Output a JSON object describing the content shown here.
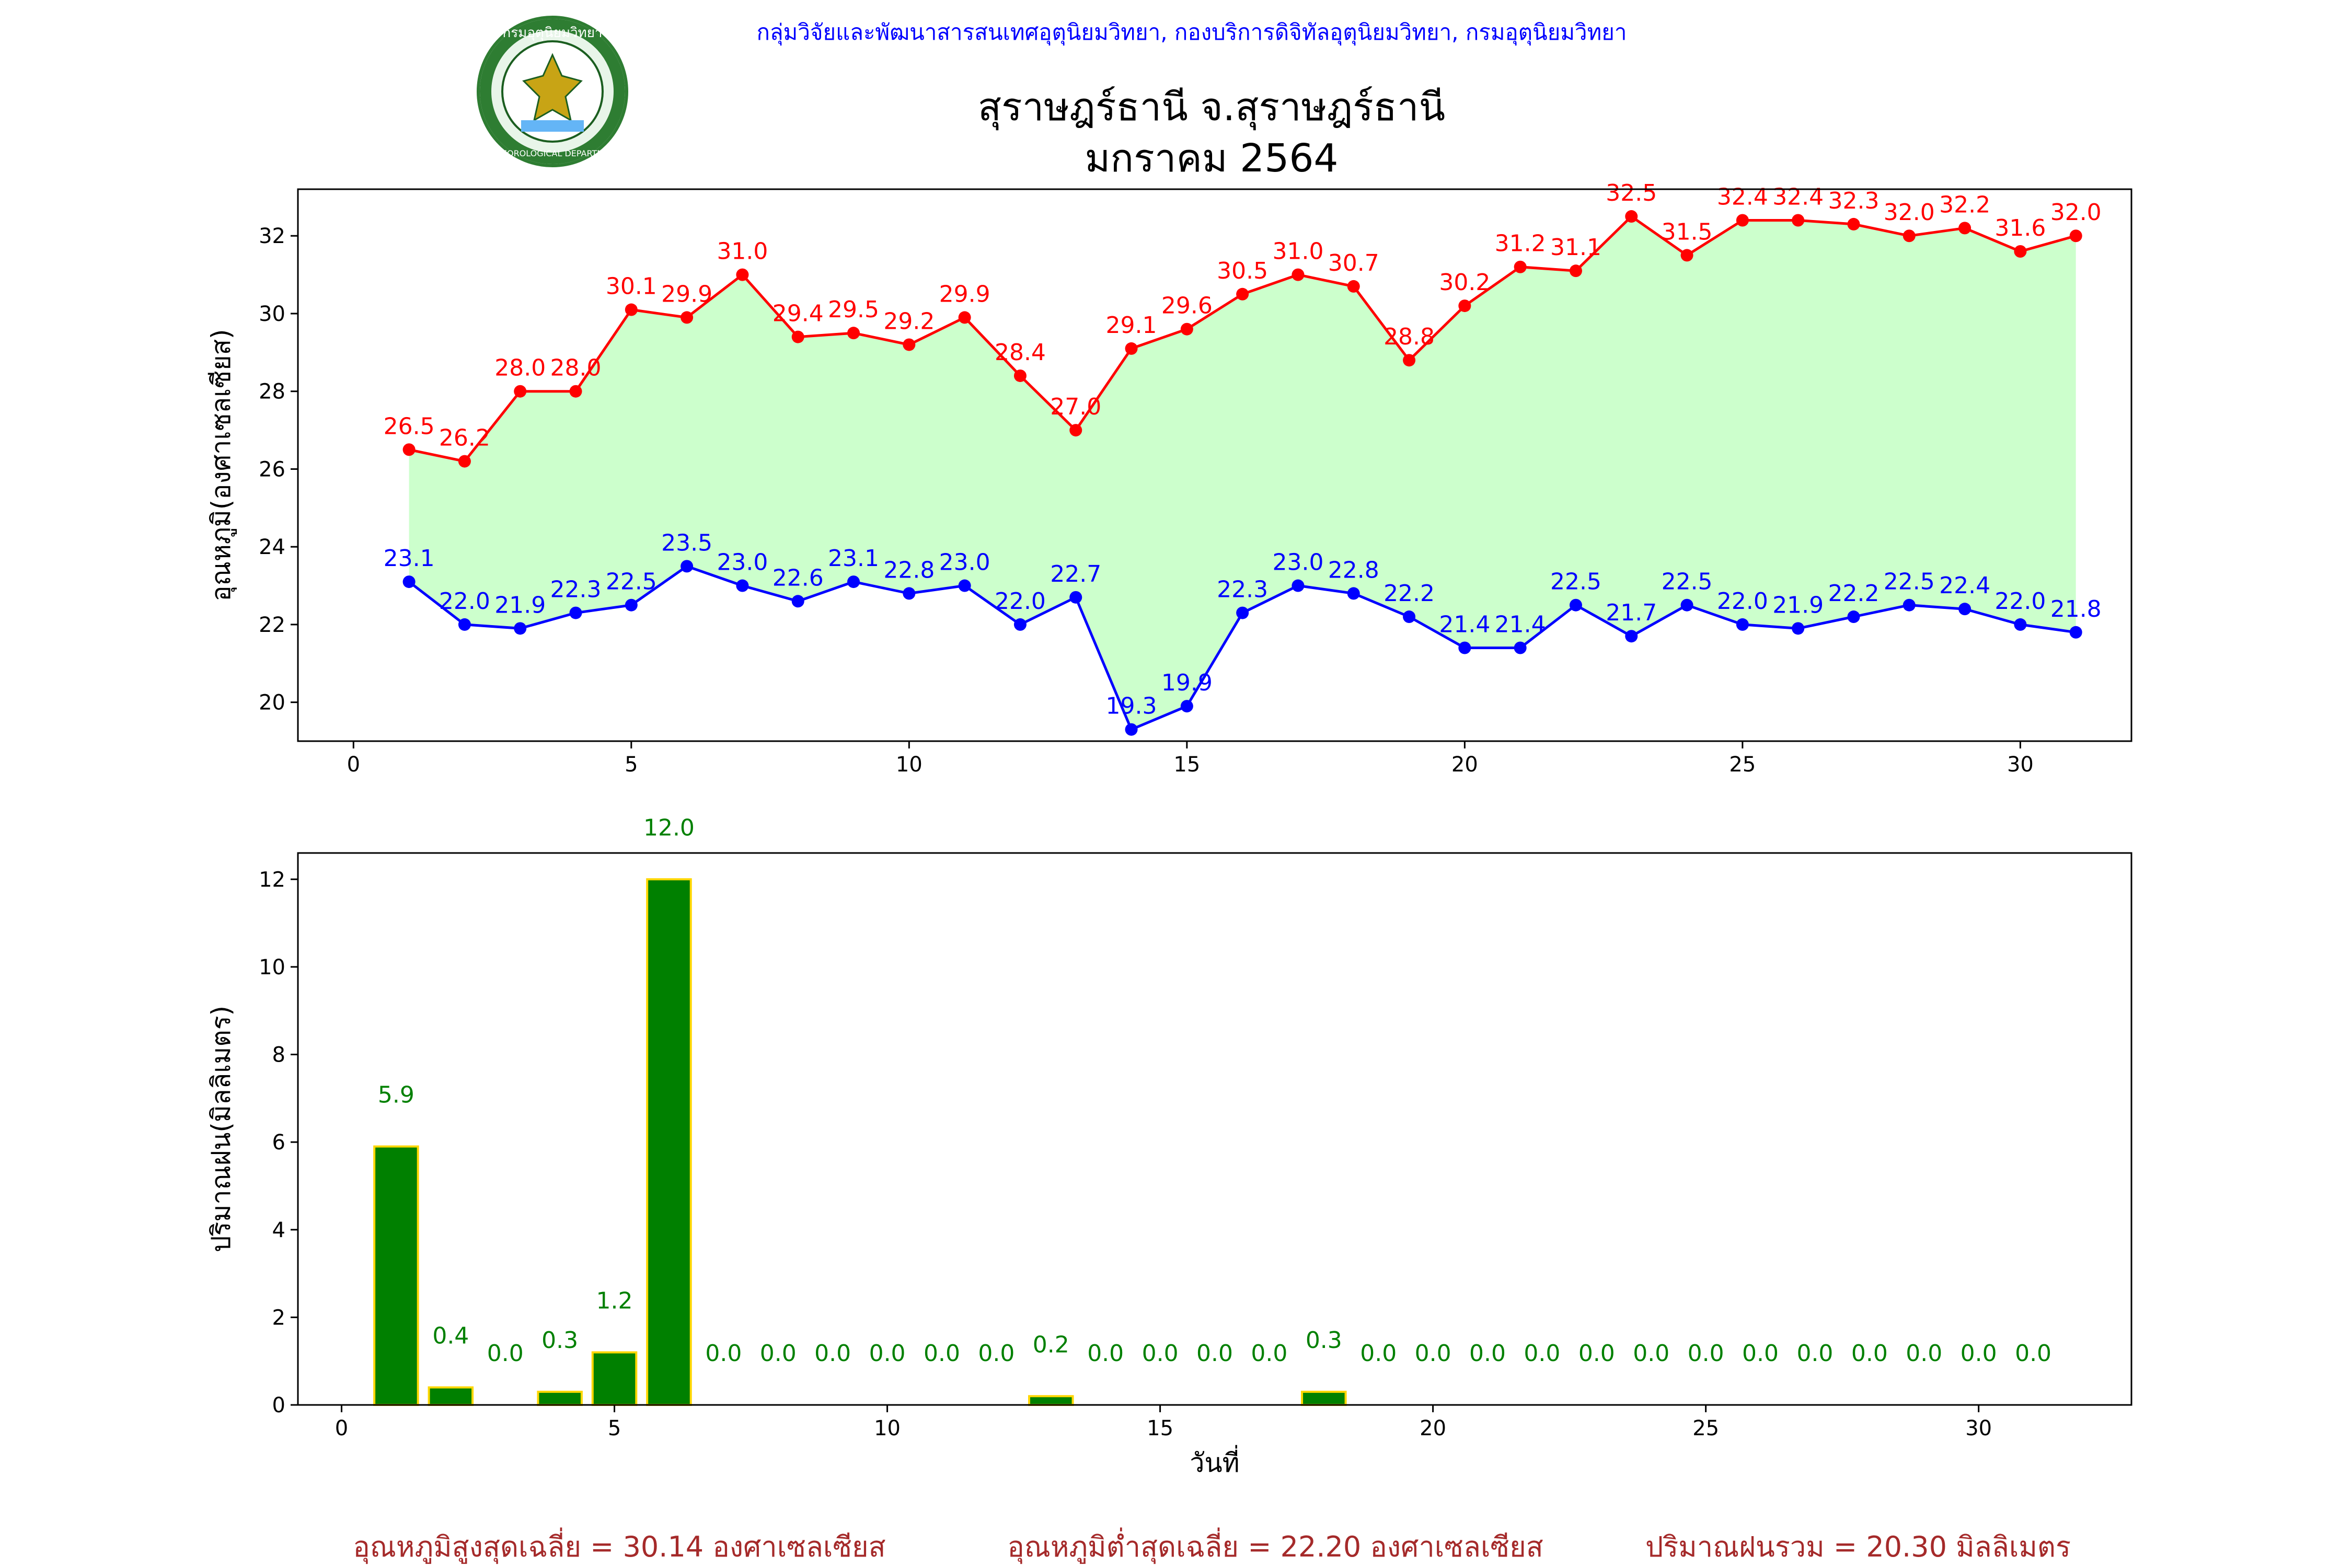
{
  "header": {
    "credit": "กลุ่มวิจัยและพัฒนาสารสนเทศอุตุนิยมวิทยา, กองบริการดิจิทัลอุตุนิยมวิทยา, กรมอุตุนิยมวิทยา",
    "title_line1": "สุราษฎร์ธานี จ.สุราษฎร์ธานี",
    "title_line2": "มกราคม 2564",
    "logo_text_top": "กรมอุตุนิยมวิทยา",
    "logo_text_bottom": "METEOROLOGICAL DEPARTMENT"
  },
  "footer": {
    "max_avg": "อุณหภูมิสูงสุดเฉลี่ย = 30.14 องศาเซลเซียส",
    "min_avg": "อุณหภูมิต่ำสุดเฉลี่ย = 22.20 องศาเซลเซียส",
    "rain_total": "ปริมาณฝนรวม = 20.30 มิลลิเมตร"
  },
  "colors": {
    "max_line": "#ff0000",
    "min_line": "#0000ff",
    "fill": "#ccffcc",
    "bar": "#008000",
    "bar_edge": "#ffd700",
    "bar_label": "#008000",
    "credit": "#0000ff",
    "footer": "#a52a2a"
  },
  "chart_data": [
    {
      "type": "line",
      "ylabel": "อุณหภูมิ(องศาเซลเซียส)",
      "xlabel": "",
      "xlim": [
        -1,
        32
      ],
      "ylim": [
        19.0,
        33.2
      ],
      "xticks": [
        0,
        5,
        10,
        15,
        20,
        25,
        30
      ],
      "yticks": [
        20,
        22,
        24,
        26,
        28,
        30,
        32
      ],
      "x": [
        1,
        2,
        3,
        4,
        5,
        6,
        7,
        8,
        9,
        10,
        11,
        12,
        13,
        14,
        15,
        16,
        17,
        18,
        19,
        20,
        21,
        22,
        23,
        24,
        25,
        26,
        27,
        28,
        29,
        30,
        31
      ],
      "series": [
        {
          "values": [
            26.5,
            26.2,
            28.0,
            28.0,
            30.1,
            29.9,
            31.0,
            29.4,
            29.5,
            29.2,
            29.9,
            28.4,
            27.0,
            29.1,
            29.6,
            30.5,
            31.0,
            30.7,
            28.8,
            30.2,
            31.2,
            31.1,
            32.5,
            31.5,
            32.4,
            32.4,
            32.3,
            32.0,
            32.2,
            31.6,
            32.0
          ]
        },
        {
          "values": [
            23.1,
            22.0,
            21.9,
            22.3,
            22.5,
            23.5,
            23.0,
            22.6,
            23.1,
            22.8,
            23.0,
            22.0,
            22.7,
            19.3,
            19.9,
            22.3,
            23.0,
            22.8,
            22.2,
            21.4,
            21.4,
            22.5,
            21.7,
            22.5,
            22.0,
            21.9,
            22.2,
            22.5,
            22.4,
            22.0,
            21.8
          ]
        }
      ]
    },
    {
      "type": "bar",
      "ylabel": "ปริมาณฝน(มิลลิเมตร)",
      "xlabel": "วันที่",
      "xlim": [
        -0.8,
        32.8
      ],
      "ylim": [
        0,
        12.6
      ],
      "xticks": [
        0,
        5,
        10,
        15,
        20,
        25,
        30
      ],
      "yticks": [
        0,
        2,
        4,
        6,
        8,
        10,
        12
      ],
      "x": [
        1,
        2,
        3,
        4,
        5,
        6,
        7,
        8,
        9,
        10,
        11,
        12,
        13,
        14,
        15,
        16,
        17,
        18,
        19,
        20,
        21,
        22,
        23,
        24,
        25,
        26,
        27,
        28,
        29,
        30,
        31
      ],
      "values": [
        5.9,
        0.4,
        0.0,
        0.3,
        1.2,
        12.0,
        0.0,
        0.0,
        0.0,
        0.0,
        0.0,
        0.0,
        0.2,
        0.0,
        0.0,
        0.0,
        0.0,
        0.3,
        0.0,
        0.0,
        0.0,
        0.0,
        0.0,
        0.0,
        0.0,
        0.0,
        0.0,
        0.0,
        0.0,
        0.0,
        0.0
      ]
    }
  ]
}
